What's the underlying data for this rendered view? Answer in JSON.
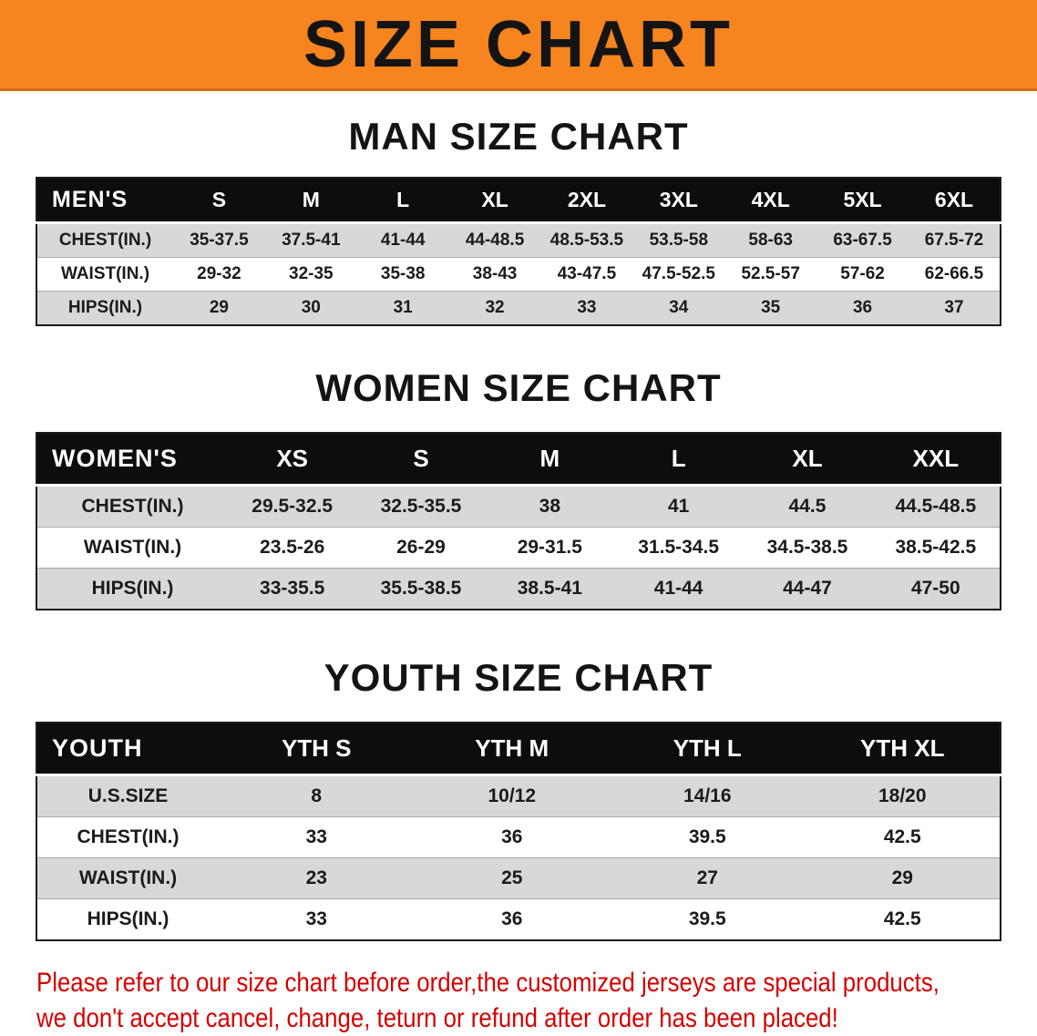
{
  "banner": {
    "title": "SIZE CHART"
  },
  "colors": {
    "banner_orange": "#f6851f",
    "header_black": "#0d0d0d",
    "row_shade": "#d8d8d8",
    "disclaimer_red": "#d40000"
  },
  "sections": [
    {
      "heading": "MAN SIZE CHART",
      "table": {
        "header": [
          "MEN'S",
          "S",
          "M",
          "L",
          "XL",
          "2XL",
          "3XL",
          "4XL",
          "5XL",
          "6XL"
        ],
        "rows": [
          {
            "label": "CHEST(IN.)",
            "values": [
              "35-37.5",
              "37.5-41",
              "41-44",
              "44-48.5",
              "48.5-53.5",
              "53.5-58",
              "58-63",
              "63-67.5",
              "67.5-72"
            ]
          },
          {
            "label": "WAIST(IN.)",
            "values": [
              "29-32",
              "32-35",
              "35-38",
              "38-43",
              "43-47.5",
              "47.5-52.5",
              "52.5-57",
              "57-62",
              "62-66.5"
            ]
          },
          {
            "label": "HIPS(IN.)",
            "values": [
              "29",
              "30",
              "31",
              "32",
              "33",
              "34",
              "35",
              "36",
              "37"
            ]
          }
        ]
      }
    },
    {
      "heading": "WOMEN SIZE CHART",
      "table": {
        "header": [
          "WOMEN'S",
          "XS",
          "S",
          "M",
          "L",
          "XL",
          "XXL"
        ],
        "rows": [
          {
            "label": "CHEST(IN.)",
            "values": [
              "29.5-32.5",
              "32.5-35.5",
              "38",
              "41",
              "44.5",
              "44.5-48.5"
            ]
          },
          {
            "label": "WAIST(IN.)",
            "values": [
              "23.5-26",
              "26-29",
              "29-31.5",
              "31.5-34.5",
              "34.5-38.5",
              "38.5-42.5"
            ]
          },
          {
            "label": "HIPS(IN.)",
            "values": [
              "33-35.5",
              "35.5-38.5",
              "38.5-41",
              "41-44",
              "44-47",
              "47-50"
            ]
          }
        ]
      }
    },
    {
      "heading": "YOUTH SIZE CHART",
      "table": {
        "header": [
          "YOUTH",
          "YTH S",
          "YTH M",
          "YTH L",
          "YTH XL"
        ],
        "rows": [
          {
            "label": "U.S.SIZE",
            "values": [
              "8",
              "10/12",
              "14/16",
              "18/20"
            ]
          },
          {
            "label": "CHEST(IN.)",
            "values": [
              "33",
              "36",
              "39.5",
              "42.5"
            ]
          },
          {
            "label": "WAIST(IN.)",
            "values": [
              "23",
              "25",
              "27",
              "29"
            ]
          },
          {
            "label": "HIPS(IN.)",
            "values": [
              "33",
              "36",
              "39.5",
              "42.5"
            ]
          }
        ]
      }
    }
  ],
  "disclaimer": {
    "lines": [
      "Please refer to our size chart before order,the customized jerseys are special products,",
      "we don't accept cancel, change, teturn or refund after order has been placed!"
    ]
  }
}
